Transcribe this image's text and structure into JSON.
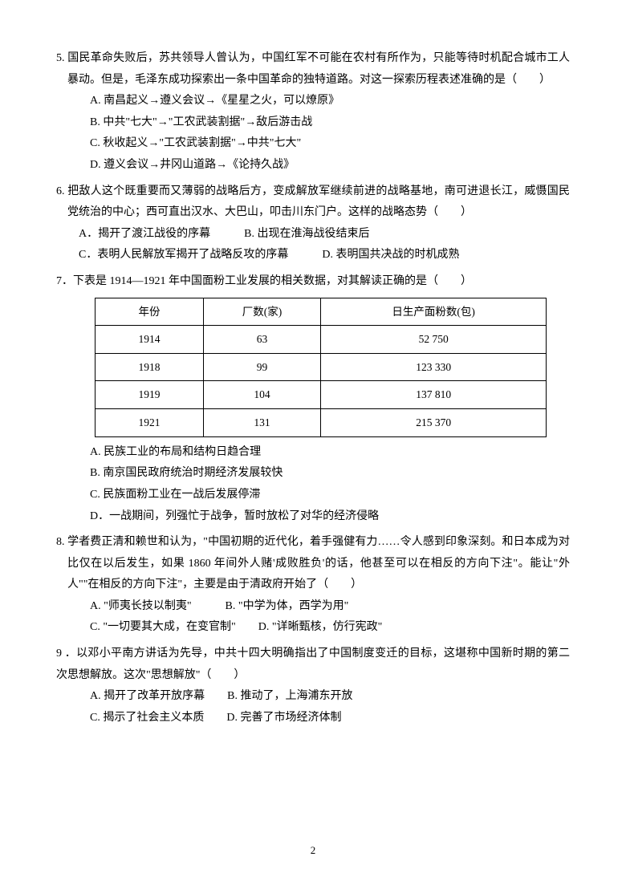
{
  "q5": {
    "stem": "5. 国民革命失败后，苏共领导人曾认为，中国红军不可能在农村有所作为，只能等待时机配合城市工人暴动。但是，毛泽东成功探索出一条中国革命的独特道路。对这一探索历程表述准确的是（　　）",
    "a": "A. 南昌起义→遵义会议→《星星之火，可以燎原》",
    "b": "B. 中共\"七大\"→\"工农武装割据\"→敌后游击战",
    "c": "C. 秋收起义→\"工农武装割据\"→中共\"七大\"",
    "d": "D. 遵义会议→井冈山道路→《论持久战》"
  },
  "q6": {
    "stem": "6. 把敌人这个既重要而又薄弱的战略后方，变成解放军继续前进的战略基地，南可进退长江，威慑国民党统治的中心；西可直出汉水、大巴山，叩击川东门户。这样的战略态势（　　）",
    "ab": "A．揭开了渡江战役的序幕　　　B. 出现在淮海战役结束后",
    "cd": "C．表明人民解放军揭开了战略反攻的序幕　　　D. 表明国共决战的时机成熟"
  },
  "q7": {
    "stem": "7．下表是 1914—1921 年中国面粉工业发展的相关数据，对其解读正确的是（　　）",
    "headers": {
      "year": "年份",
      "factories": "厂数(家)",
      "production": "日生产面粉数(包)"
    },
    "rows": [
      {
        "year": "1914",
        "factories": "63",
        "production": "52 750"
      },
      {
        "year": "1918",
        "factories": "99",
        "production": "123 330"
      },
      {
        "year": "1919",
        "factories": "104",
        "production": "137 810"
      },
      {
        "year": "1921",
        "factories": "131",
        "production": "215 370"
      }
    ],
    "a": "A. 民族工业的布局和结构日趋合理",
    "b": "B. 南京国民政府统治时期经济发展较快",
    "c": "C. 民族面粉工业在一战后发展停滞",
    "d": "D．一战期间，列强忙于战争，暂时放松了对华的经济侵略"
  },
  "q8": {
    "stem": "8. 学者费正清和赖世和认为，\"中国初期的近代化，着手强健有力……令人感到印象深刻。和日本成为对比仅在以后发生，如果 1860 年间外人赌'成败胜负'的话，他甚至可以在相反的方向下注\"。能让\"外人\"\"在相反的方向下注\"，主要是由于清政府开始了（　　）",
    "ab": "A. \"师夷长技以制夷\"　　　B. \"中学为体，西学为用\"",
    "cd": "C. \"一切要其大成，在变官制\"　　D. \"详晰甄核，仿行宪政\""
  },
  "q9": {
    "stem": "9 ．以邓小平南方讲话为先导，中共十四大明确指出了中国制度变迁的目标，这堪称中国新时期的第二次思想解放。这次\"思想解放\"（　　）",
    "ab": "A. 揭开了改革开放序幕　　B. 推动了，上海浦东开放",
    "cd": "C. 揭示了社会主义本质　　D. 完善了市场经济体制"
  },
  "pageNumber": "2"
}
